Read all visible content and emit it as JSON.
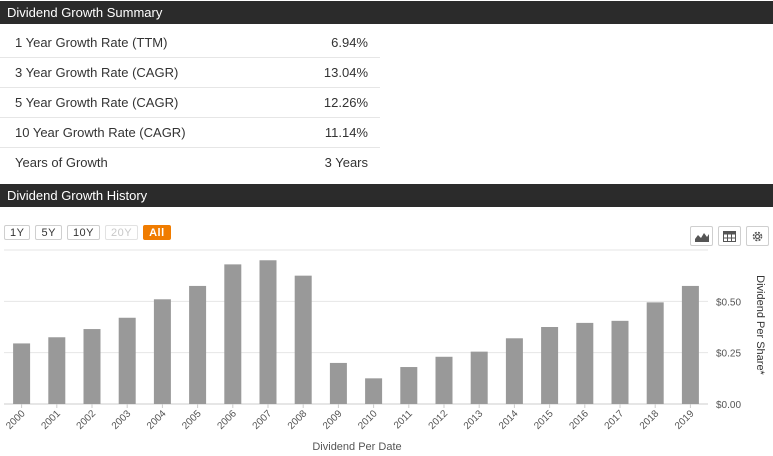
{
  "summary": {
    "title": "Dividend Growth Summary",
    "rows": [
      {
        "label": "1 Year Growth Rate (TTM)",
        "value": "6.94%"
      },
      {
        "label": "3 Year Growth Rate (CAGR)",
        "value": "13.04%"
      },
      {
        "label": "5 Year Growth Rate (CAGR)",
        "value": "12.26%"
      },
      {
        "label": "10 Year Growth Rate (CAGR)",
        "value": "11.14%"
      },
      {
        "label": "Years of Growth",
        "value": "3 Years"
      }
    ]
  },
  "history": {
    "title": "Dividend Growth History",
    "range_buttons": [
      "1Y",
      "5Y",
      "10Y",
      "20Y",
      "All"
    ],
    "range_disabled": "20Y",
    "range_active": "All",
    "tools": [
      "area-chart-icon",
      "table-icon",
      "gear-icon"
    ]
  },
  "chart_data": {
    "type": "bar",
    "categories": [
      "2000",
      "2001",
      "2002",
      "2003",
      "2004",
      "2005",
      "2006",
      "2007",
      "2008",
      "2009",
      "2010",
      "2011",
      "2012",
      "2013",
      "2014",
      "2015",
      "2016",
      "2017",
      "2018",
      "2019"
    ],
    "values": [
      0.295,
      0.325,
      0.365,
      0.42,
      0.51,
      0.575,
      0.68,
      0.7,
      0.625,
      0.2,
      0.125,
      0.18,
      0.23,
      0.255,
      0.32,
      0.375,
      0.395,
      0.405,
      0.495,
      0.575
    ],
    "title": "",
    "xlabel": "Dividend Per Date",
    "ylabel": "Dividend Per Share*",
    "ylim": [
      0,
      0.75
    ],
    "yticks": [
      0,
      0.25,
      0.5
    ],
    "ytick_labels": [
      "$0.00",
      "$0.25",
      "$0.50"
    ],
    "grid": true,
    "bar_color": "#999999",
    "y_axis_side": "right"
  }
}
